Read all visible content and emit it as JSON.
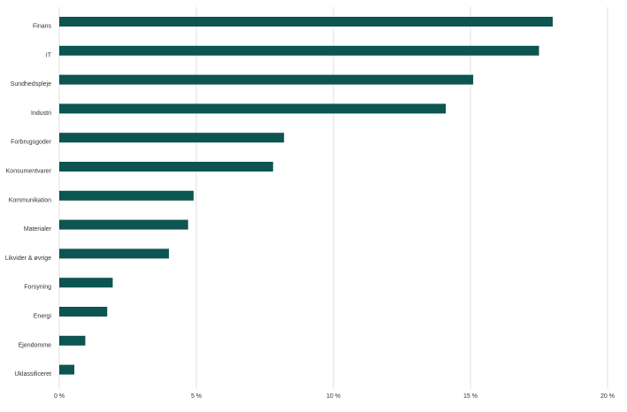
{
  "chart_data": {
    "type": "bar",
    "orientation": "horizontal",
    "title": "",
    "xlabel": "",
    "ylabel": "",
    "categories": [
      "Finans",
      "IT",
      "Sundhedspleje",
      "Industri",
      "Forbrugsgoder",
      "Konsumentvarer",
      "Kommunikation",
      "Materialer",
      "Likvider & øvrige",
      "Forsyning",
      "Energi",
      "Ejendomme",
      "Uklassificeret"
    ],
    "values": [
      18.0,
      17.5,
      15.1,
      14.1,
      8.2,
      7.8,
      4.9,
      4.7,
      4.0,
      1.95,
      1.75,
      0.95,
      0.55
    ],
    "xlim": [
      0,
      20
    ],
    "ticks": [
      0,
      5,
      10,
      15,
      20
    ],
    "tick_labels": [
      "0 %",
      "5 %",
      "10 %",
      "15 %",
      "20 %"
    ],
    "grid": true,
    "bar_color": "#0c5550",
    "grid_color": "#e2e2e2"
  }
}
